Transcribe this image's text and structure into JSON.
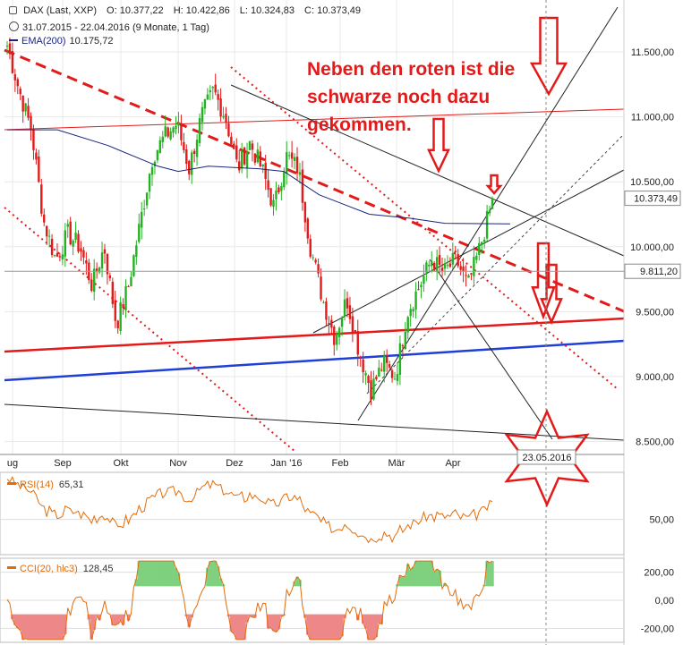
{
  "header": {
    "symbol_line": "DAX (Last, XXP)",
    "open": "O: 10.377,22",
    "high": "H: 10.422,86",
    "low": "L: 10.324,83",
    "close": "C: 10.373,49",
    "period": "31.07.2015 - 22.04.2016 (9 Monate, 1 Tag)",
    "ema_label": "EMA(200)",
    "ema_value": "10.175,72"
  },
  "annotation": [
    "Neben den roten ist die",
    "schwarze noch dazu",
    "gekommen."
  ],
  "date_marker": "23.05.2016",
  "price_labels": {
    "last": "10.373,49",
    "level": "9.811,20"
  },
  "rsi": {
    "label": "RSI(14)",
    "value": "65,31",
    "axis": [
      "50,00"
    ]
  },
  "cci": {
    "label": "CCI(20, hlc3)",
    "value": "128,45",
    "axis": [
      "200,00",
      "0,00",
      "-200,00"
    ]
  },
  "colors": {
    "up": "#22b322",
    "down": "#e31a1a",
    "ema": "#1a237e",
    "osc": "#e36c09",
    "trend_red": "#e31a1a",
    "trend_blue": "#1f3fd6",
    "grid": "#e9e9e9"
  },
  "chart_data": {
    "type": "candlestick",
    "ylim": [
      8400,
      11900
    ],
    "y_ticks": [
      "8.500,00",
      "9.000,00",
      "9.500,00",
      "10.000,00",
      "10.500,00",
      "11.000,00",
      "11.500,00"
    ],
    "x_tick_labels": [
      "ug",
      "Sep",
      "Okt",
      "Nov",
      "Dez",
      "Jan '16",
      "Feb",
      "Mär",
      "Apr"
    ],
    "anchors": [
      [
        11550,
        11650
      ],
      [
        11200,
        11100
      ],
      [
        10900,
        10600
      ],
      [
        10200,
        9800
      ],
      [
        9900,
        9700
      ],
      [
        10100,
        10300
      ],
      [
        10000,
        9950
      ],
      [
        9700,
        9600
      ],
      [
        10000,
        9900
      ],
      [
        9400,
        9500
      ],
      [
        9700,
        9900
      ],
      [
        10200,
        10350
      ],
      [
        10700,
        10850
      ],
      [
        10850,
        10800
      ],
      [
        10950,
        10900
      ],
      [
        10600,
        10700
      ],
      [
        11000,
        11100
      ],
      [
        11200,
        11300
      ],
      [
        11000,
        10800
      ],
      [
        10600,
        10700
      ],
      [
        10800,
        10700
      ],
      [
        10600,
        10500
      ],
      [
        10300,
        10100
      ],
      [
        10700,
        10800
      ],
      [
        10600,
        10400
      ],
      [
        10000,
        9800
      ],
      [
        9600,
        9700
      ],
      [
        9300,
        9400
      ],
      [
        9600,
        9500
      ],
      [
        9200,
        9100
      ],
      [
        8900,
        8800
      ],
      [
        9100,
        9200
      ],
      [
        9000,
        9300
      ],
      [
        9500,
        9600
      ],
      [
        9700,
        9900
      ],
      [
        9900,
        9800
      ],
      [
        9800,
        10000
      ],
      [
        9900,
        9700
      ],
      [
        9700,
        9600
      ],
      [
        10000,
        10200
      ],
      [
        10350,
        10380
      ]
    ],
    "ema200": [
      [
        0,
        10900
      ],
      [
        0.1,
        10900
      ],
      [
        0.2,
        10780
      ],
      [
        0.3,
        10620
      ],
      [
        0.34,
        10580
      ],
      [
        0.4,
        10620
      ],
      [
        0.5,
        10600
      ],
      [
        0.55,
        10580
      ],
      [
        0.62,
        10400
      ],
      [
        0.72,
        10250
      ],
      [
        0.8,
        10220
      ],
      [
        0.87,
        10180
      ],
      [
        1,
        10176
      ]
    ],
    "rsi_range": [
      20,
      90
    ],
    "cci_range": [
      -300,
      300
    ]
  }
}
